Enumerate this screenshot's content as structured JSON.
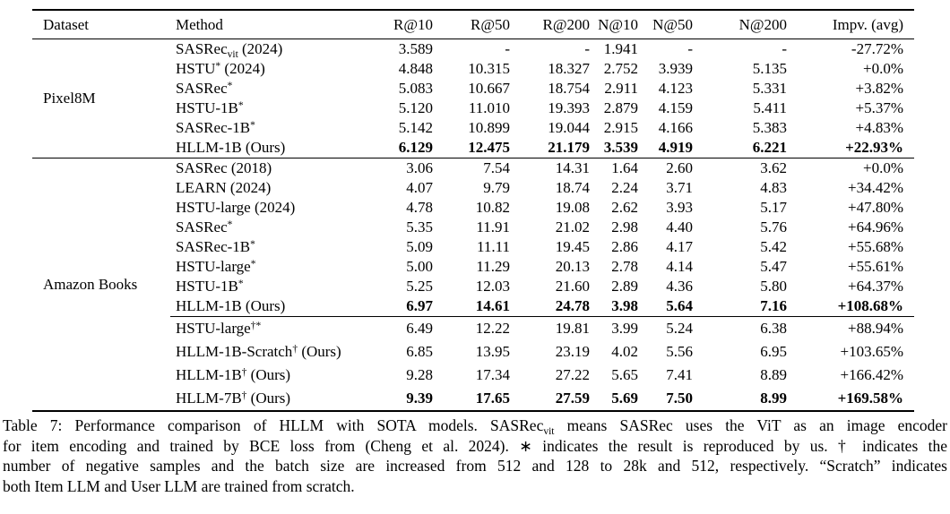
{
  "table": {
    "headers": [
      "Dataset",
      "Method",
      "R@10",
      "R@50",
      "R@200",
      "N@10",
      "N@50",
      "N@200",
      "Impv. (avg)"
    ],
    "sections": [
      {
        "dataset": "Pixel8M",
        "groups": [
          {
            "rows": [
              {
                "method": [
                  [
                    "SASRec",
                    "n"
                  ],
                  [
                    "vit",
                    "sub"
                  ],
                  [
                    " (2024)",
                    "n"
                  ]
                ],
                "values": [
                  "3.589",
                  "-",
                  "-",
                  "1.941",
                  "-",
                  "-",
                  "-27.72%"
                ],
                "bold": false
              },
              {
                "method": [
                  [
                    "HSTU",
                    "n"
                  ],
                  [
                    "*",
                    "sup"
                  ],
                  [
                    " (2024)",
                    "n"
                  ]
                ],
                "values": [
                  "4.848",
                  "10.315",
                  "18.327",
                  "2.752",
                  "3.939",
                  "5.135",
                  "+0.0%"
                ],
                "bold": false
              },
              {
                "method": [
                  [
                    "SASRec",
                    "n"
                  ],
                  [
                    "*",
                    "sup"
                  ]
                ],
                "values": [
                  "5.083",
                  "10.667",
                  "18.754",
                  "2.911",
                  "4.123",
                  "5.331",
                  "+3.82%"
                ],
                "bold": false
              },
              {
                "method": [
                  [
                    "HSTU-1B",
                    "n"
                  ],
                  [
                    "*",
                    "sup"
                  ]
                ],
                "values": [
                  "5.120",
                  "11.010",
                  "19.393",
                  "2.879",
                  "4.159",
                  "5.411",
                  "+5.37%"
                ],
                "bold": false
              },
              {
                "method": [
                  [
                    "SASRec-1B",
                    "n"
                  ],
                  [
                    "*",
                    "sup"
                  ]
                ],
                "values": [
                  "5.142",
                  "10.899",
                  "19.044",
                  "2.915",
                  "4.166",
                  "5.383",
                  "+4.83%"
                ],
                "bold": false
              },
              {
                "method": [
                  [
                    "HLLM-1B (Ours)",
                    "n"
                  ]
                ],
                "values": [
                  "6.129",
                  "12.475",
                  "21.179",
                  "3.539",
                  "4.919",
                  "6.221",
                  "+22.93%"
                ],
                "bold": true
              }
            ]
          }
        ]
      },
      {
        "dataset": "Amazon Books",
        "groups": [
          {
            "rows": [
              {
                "method": [
                  [
                    "SASRec (2018)",
                    "n"
                  ]
                ],
                "values": [
                  "3.06",
                  "7.54",
                  "14.31",
                  "1.64",
                  "2.60",
                  "3.62",
                  "+0.0%"
                ],
                "bold": false
              },
              {
                "method": [
                  [
                    "LEARN (2024)",
                    "n"
                  ]
                ],
                "values": [
                  "4.07",
                  "9.79",
                  "18.74",
                  "2.24",
                  "3.71",
                  "4.83",
                  "+34.42%"
                ],
                "bold": false
              },
              {
                "method": [
                  [
                    "HSTU-large (2024)",
                    "n"
                  ]
                ],
                "values": [
                  "4.78",
                  "10.82",
                  "19.08",
                  "2.62",
                  "3.93",
                  "5.17",
                  "+47.80%"
                ],
                "bold": false
              },
              {
                "method": [
                  [
                    "SASRec",
                    "n"
                  ],
                  [
                    "*",
                    "sup"
                  ]
                ],
                "values": [
                  "5.35",
                  "11.91",
                  "21.02",
                  "2.98",
                  "4.40",
                  "5.76",
                  "+64.96%"
                ],
                "bold": false
              },
              {
                "method": [
                  [
                    "SASRec-1B",
                    "n"
                  ],
                  [
                    "*",
                    "sup"
                  ]
                ],
                "values": [
                  "5.09",
                  "11.11",
                  "19.45",
                  "2.86",
                  "4.17",
                  "5.42",
                  "+55.68%"
                ],
                "bold": false
              },
              {
                "method": [
                  [
                    "HSTU-large",
                    "n"
                  ],
                  [
                    "*",
                    "sup"
                  ]
                ],
                "values": [
                  "5.00",
                  "11.29",
                  "20.13",
                  "2.78",
                  "4.14",
                  "5.47",
                  "+55.61%"
                ],
                "bold": false
              },
              {
                "method": [
                  [
                    "HSTU-1B",
                    "n"
                  ],
                  [
                    "*",
                    "sup"
                  ]
                ],
                "values": [
                  "5.25",
                  "12.03",
                  "21.60",
                  "2.89",
                  "4.36",
                  "5.80",
                  "+64.37%"
                ],
                "bold": false
              },
              {
                "method": [
                  [
                    "HLLM-1B (Ours)",
                    "n"
                  ]
                ],
                "values": [
                  "6.97",
                  "14.61",
                  "24.78",
                  "3.98",
                  "5.64",
                  "7.16",
                  "+108.68%"
                ],
                "bold": true
              }
            ]
          },
          {
            "rows": [
              {
                "method": [
                  [
                    "HSTU-large",
                    "n"
                  ],
                  [
                    "†*",
                    "sup"
                  ]
                ],
                "values": [
                  "6.49",
                  "12.22",
                  "19.81",
                  "3.99",
                  "5.24",
                  "6.38",
                  "+88.94%"
                ],
                "bold": false
              },
              {
                "method": [
                  [
                    "HLLM-1B-Scratch",
                    "n"
                  ],
                  [
                    "†",
                    "sup"
                  ],
                  [
                    " (Ours)",
                    "n"
                  ]
                ],
                "values": [
                  "6.85",
                  "13.95",
                  "23.19",
                  "4.02",
                  "5.56",
                  "6.95",
                  "+103.65%"
                ],
                "bold": false
              },
              {
                "method": [
                  [
                    "HLLM-1B",
                    "n"
                  ],
                  [
                    "†",
                    "sup"
                  ],
                  [
                    " (Ours)",
                    "n"
                  ]
                ],
                "values": [
                  "9.28",
                  "17.34",
                  "27.22",
                  "5.65",
                  "7.41",
                  "8.89",
                  "+166.42%"
                ],
                "bold": false
              },
              {
                "method": [
                  [
                    "HLLM-7B",
                    "n"
                  ],
                  [
                    "†",
                    "sup"
                  ],
                  [
                    " (Ours)",
                    "n"
                  ]
                ],
                "values": [
                  "9.39",
                  "17.65",
                  "27.59",
                  "5.69",
                  "7.50",
                  "8.99",
                  "+169.58%"
                ],
                "bold": true
              }
            ]
          }
        ]
      }
    ]
  },
  "caption": {
    "lines": [
      [
        [
          "Table 7: Performance comparison of HLLM with SOTA models. SASRec",
          "n"
        ],
        [
          "vit",
          "sub"
        ],
        [
          " means SASRec uses the ViT as an image encoder",
          "n"
        ]
      ],
      [
        [
          "for item encoding and trained by BCE loss from (Cheng et al. 2024). ∗ indicates the result is reproduced by us. † indicates the",
          "n"
        ]
      ],
      [
        [
          "number of negative samples and the batch size are increased from 512 and 128 to 28k and 512, respectively. “Scratch” indicates",
          "n"
        ]
      ],
      [
        [
          "both Item LLM and User LLM are trained from scratch.",
          "n"
        ]
      ]
    ]
  }
}
